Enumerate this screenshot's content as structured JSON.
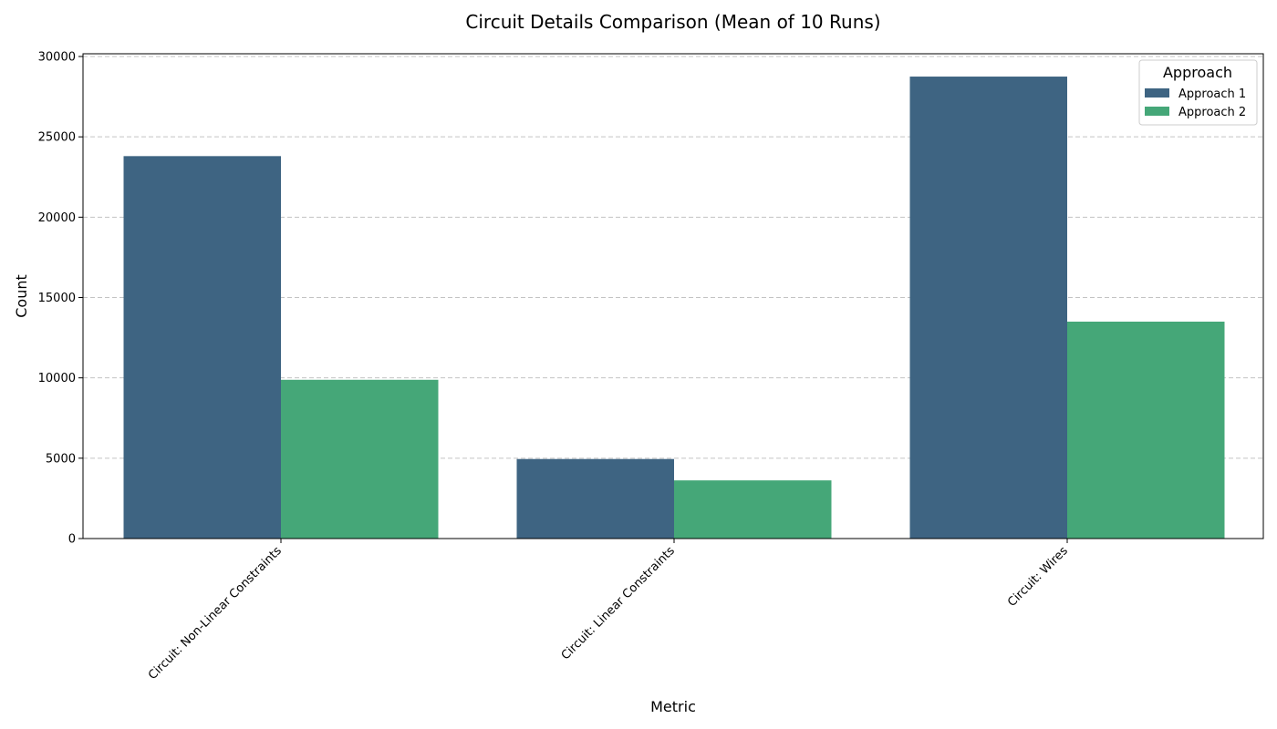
{
  "chart_data": {
    "type": "bar",
    "title": "Circuit Details Comparison (Mean of 10 Runs)",
    "xlabel": "Metric",
    "ylabel": "Count",
    "categories": [
      "Circuit: Non-Linear Constraints",
      "Circuit: Linear Constraints",
      "Circuit: Wires"
    ],
    "series": [
      {
        "name": "Approach 1",
        "color": "#3e6482",
        "values": [
          23800,
          4950,
          28750
        ]
      },
      {
        "name": "Approach 2",
        "color": "#45a778",
        "values": [
          9880,
          3620,
          13500
        ]
      }
    ],
    "ylim": [
      0,
      30000
    ],
    "yticks": [
      0,
      5000,
      10000,
      15000,
      20000,
      25000,
      30000
    ],
    "grid": "horizontal dashed",
    "legend": {
      "title": "Approach",
      "placement": "top-right"
    }
  }
}
